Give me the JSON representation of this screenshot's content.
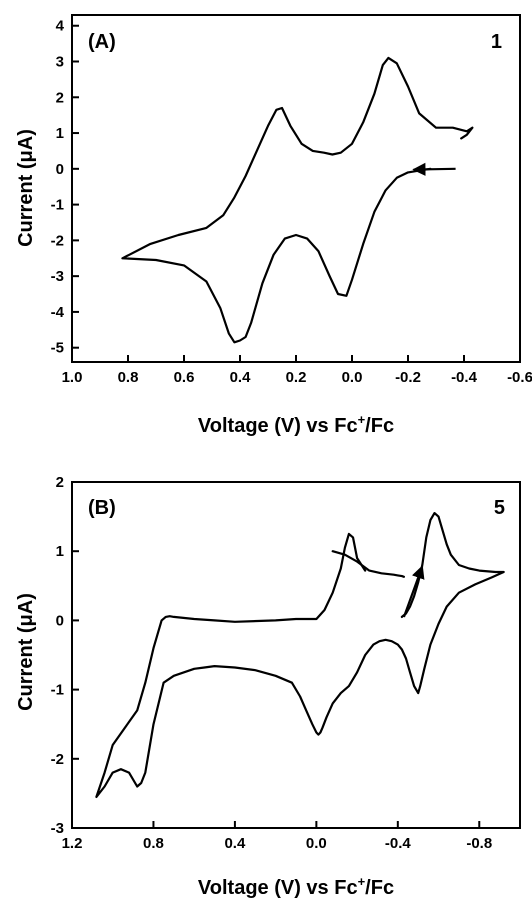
{
  "chart_data": [
    {
      "type": "line",
      "panel_label": "(A)",
      "compound_label": "1",
      "xlabel_parts": [
        "Voltage (V) vs Fc",
        "+",
        "/Fc"
      ],
      "ylabel": "Current (μA)",
      "xlim": [
        1.0,
        -0.6
      ],
      "ylim": [
        -5.4,
        4.3
      ],
      "xticks": [
        1.0,
        0.8,
        0.6,
        0.4,
        0.2,
        0.0,
        -0.2,
        -0.4,
        -0.6
      ],
      "xtick_labels": [
        "1.0",
        "0.8",
        "0.6",
        "0.4",
        "0.2",
        "0.0",
        "-0.2",
        "-0.4",
        "-0.6"
      ],
      "yticks": [
        4,
        3,
        2,
        1,
        0,
        -1,
        -2,
        -3,
        -4,
        -5
      ],
      "ytick_labels": [
        "4",
        "3",
        "2",
        "1",
        "0",
        "-1",
        "-2",
        "-3",
        "-4",
        "-5"
      ],
      "grid": false,
      "series": [
        {
          "x": [
            -0.28,
            -0.24,
            -0.2,
            -0.16,
            -0.12,
            -0.08,
            -0.04,
            0.0,
            0.02,
            0.05,
            0.08,
            0.12,
            0.16,
            0.2,
            0.24,
            0.28,
            0.32,
            0.36,
            0.38,
            0.4,
            0.42,
            0.44,
            0.47,
            0.52,
            0.6,
            0.7,
            0.82,
            0.72,
            0.62,
            0.52,
            0.46,
            0.42,
            0.38,
            0.34,
            0.3,
            0.27,
            0.25,
            0.22,
            0.18,
            0.14,
            0.1,
            0.07,
            0.04,
            0.0,
            -0.04,
            -0.08,
            -0.11,
            -0.13,
            -0.16,
            -0.2,
            -0.24,
            -0.3,
            -0.36,
            -0.41,
            -0.43,
            -0.41,
            -0.39
          ],
          "y": [
            0.0,
            -0.05,
            -0.1,
            -0.25,
            -0.6,
            -1.2,
            -2.1,
            -3.1,
            -3.55,
            -3.5,
            -3.0,
            -2.3,
            -1.95,
            -1.85,
            -1.95,
            -2.4,
            -3.2,
            -4.3,
            -4.7,
            -4.8,
            -4.85,
            -4.6,
            -3.9,
            -3.15,
            -2.7,
            -2.55,
            -2.5,
            -2.1,
            -1.85,
            -1.65,
            -1.3,
            -0.8,
            -0.2,
            0.5,
            1.2,
            1.65,
            1.7,
            1.2,
            0.7,
            0.5,
            0.45,
            0.4,
            0.45,
            0.7,
            1.3,
            2.1,
            2.9,
            3.1,
            2.95,
            2.3,
            1.55,
            1.15,
            1.15,
            1.05,
            1.15,
            0.95,
            0.85
          ]
        }
      ],
      "arrows": [
        {
          "from": [
            -0.37,
            0.0
          ],
          "to": [
            -0.22,
            -0.02
          ]
        }
      ]
    },
    {
      "type": "line",
      "panel_label": "(B)",
      "compound_label": "5",
      "xlabel_parts": [
        "Voltage (V) vs Fc",
        "+",
        "/Fc"
      ],
      "ylabel": "Current (μA)",
      "xlim": [
        1.2,
        -1.0
      ],
      "ylim": [
        -3.0,
        2.0
      ],
      "xticks": [
        1.2,
        0.8,
        0.4,
        0.0,
        -0.4,
        -0.8
      ],
      "xtick_labels": [
        "1.2",
        "0.8",
        "0.4",
        "0.0",
        "-0.4",
        "-0.8"
      ],
      "yticks": [
        2,
        1,
        0,
        -1,
        -2,
        -3
      ],
      "ytick_labels": [
        "2",
        "1",
        "0",
        "-1",
        "-2",
        "-3"
      ],
      "grid": false,
      "series": [
        {
          "x": [
            -0.08,
            -0.14,
            -0.2,
            -0.26,
            -0.32,
            -0.38,
            -0.4,
            -0.42,
            -0.43
          ],
          "y": [
            1.0,
            0.95,
            0.85,
            0.72,
            0.68,
            0.66,
            0.65,
            0.64,
            0.63
          ]
        },
        {
          "x": [
            -0.42,
            -0.44,
            -0.46,
            -0.48,
            -0.5,
            -0.52,
            -0.54,
            -0.56,
            -0.58,
            -0.6,
            -0.62,
            -0.64,
            -0.66,
            -0.7,
            -0.75,
            -0.8,
            -0.88,
            -0.92,
            -0.86,
            -0.78,
            -0.7,
            -0.64,
            -0.6,
            -0.56,
            -0.53,
            -0.51,
            -0.5,
            -0.48,
            -0.46,
            -0.44,
            -0.42,
            -0.4,
            -0.37,
            -0.34,
            -0.31,
            -0.28,
            -0.24,
            -0.2,
            -0.16,
            -0.12,
            -0.08,
            -0.05,
            -0.03,
            -0.02,
            -0.01,
            0.0,
            0.02,
            0.05,
            0.08,
            0.12,
            0.2,
            0.3,
            0.4,
            0.5,
            0.55,
            0.6,
            0.65,
            0.7,
            0.75,
            0.8,
            0.84,
            0.86,
            0.88,
            0.92,
            0.96,
            1.0,
            1.04,
            1.08,
            1.04,
            1.0,
            0.94,
            0.88,
            0.84,
            0.8,
            0.76,
            0.74,
            0.72,
            0.7,
            0.6,
            0.5,
            0.4,
            0.2,
            0.1,
            0.0,
            -0.04,
            -0.08,
            -0.12,
            -0.14,
            -0.16,
            -0.18,
            -0.2,
            -0.24
          ],
          "y": [
            0.05,
            0.1,
            0.2,
            0.35,
            0.55,
            0.8,
            1.2,
            1.45,
            1.55,
            1.5,
            1.3,
            1.1,
            0.95,
            0.8,
            0.75,
            0.72,
            0.7,
            0.7,
            0.62,
            0.52,
            0.4,
            0.2,
            -0.05,
            -0.35,
            -0.7,
            -0.95,
            -1.05,
            -0.95,
            -0.75,
            -0.55,
            -0.42,
            -0.35,
            -0.3,
            -0.28,
            -0.3,
            -0.35,
            -0.5,
            -0.75,
            -0.95,
            -1.05,
            -1.2,
            -1.4,
            -1.55,
            -1.62,
            -1.65,
            -1.62,
            -1.5,
            -1.3,
            -1.1,
            -0.9,
            -0.8,
            -0.72,
            -0.68,
            -0.66,
            -0.68,
            -0.7,
            -0.75,
            -0.8,
            -0.9,
            -1.5,
            -2.2,
            -2.35,
            -2.4,
            -2.2,
            -2.15,
            -2.2,
            -2.4,
            -2.55,
            -2.2,
            -1.8,
            -1.55,
            -1.3,
            -0.9,
            -0.4,
            0.0,
            0.05,
            0.06,
            0.05,
            0.02,
            0.0,
            -0.02,
            0.0,
            0.02,
            0.02,
            0.15,
            0.4,
            0.75,
            1.05,
            1.25,
            1.2,
            0.9,
            0.72
          ]
        }
      ],
      "arrows": [
        {
          "from": [
            -0.43,
            0.05
          ],
          "to": [
            -0.52,
            0.78
          ]
        }
      ]
    }
  ]
}
